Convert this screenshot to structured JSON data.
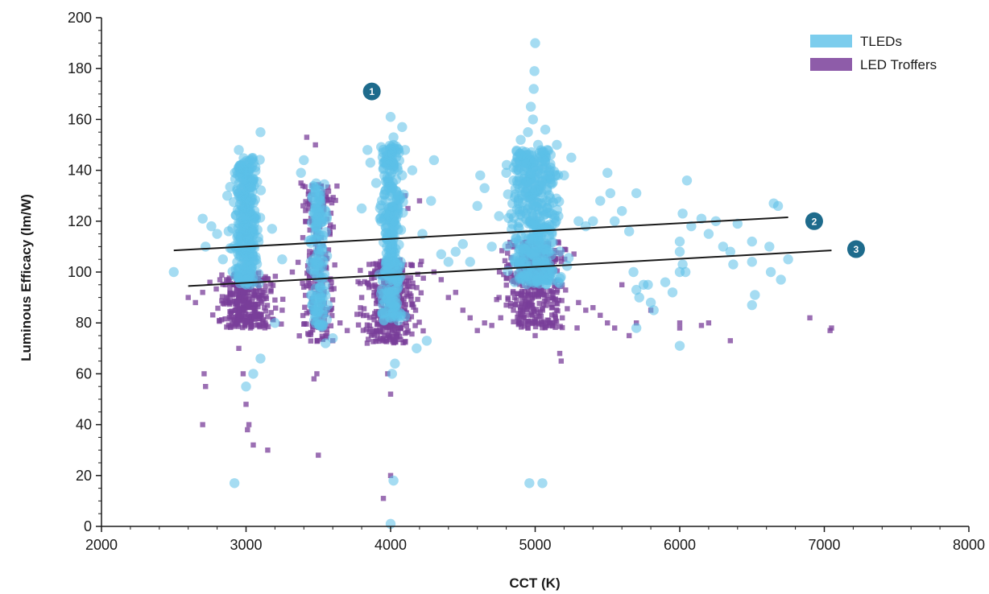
{
  "chart_data": {
    "type": "scatter",
    "xlabel": "CCT (K)",
    "ylabel": "Luminous Efficacy (lm/W)",
    "xlim": [
      2000,
      8000
    ],
    "ylim": [
      0,
      200
    ],
    "x_ticks": [
      2000,
      3000,
      4000,
      5000,
      6000,
      7000,
      8000
    ],
    "y_ticks": [
      0,
      20,
      40,
      60,
      80,
      100,
      120,
      140,
      160,
      180,
      200
    ],
    "grid": false,
    "legend_position": "top-right",
    "series": [
      {
        "name": "TLEDs",
        "marker": "circle",
        "color": "#5bc0e8",
        "clusters": [
          {
            "x_center": 3000,
            "x_spread": 90,
            "y_min": 95,
            "y_max": 145,
            "count": 320
          },
          {
            "x_center": 3500,
            "x_spread": 60,
            "y_min": 78,
            "y_max": 135,
            "count": 140
          },
          {
            "x_center": 4000,
            "x_spread": 80,
            "y_min": 80,
            "y_max": 150,
            "count": 300
          },
          {
            "x_center": 5000,
            "x_spread": 170,
            "y_min": 95,
            "y_max": 148,
            "count": 420
          }
        ],
        "points": [
          [
            2500,
            100
          ],
          [
            2700,
            121
          ],
          [
            2720,
            110
          ],
          [
            2760,
            118
          ],
          [
            2800,
            115
          ],
          [
            2840,
            105
          ],
          [
            2870,
            130
          ],
          [
            2950,
            148
          ],
          [
            3100,
            155
          ],
          [
            3180,
            117
          ],
          [
            3250,
            105
          ],
          [
            3200,
            80
          ],
          [
            3050,
            60
          ],
          [
            3100,
            66
          ],
          [
            3000,
            55
          ],
          [
            2920,
            17
          ],
          [
            3400,
            144
          ],
          [
            3380,
            139
          ],
          [
            3450,
            101
          ],
          [
            3550,
            72
          ],
          [
            3600,
            74
          ],
          [
            3800,
            125
          ],
          [
            3840,
            148
          ],
          [
            3860,
            143
          ],
          [
            3900,
            135
          ],
          [
            3950,
            143
          ],
          [
            4000,
            161
          ],
          [
            4020,
            153
          ],
          [
            4080,
            157
          ],
          [
            4100,
            148
          ],
          [
            4150,
            140
          ],
          [
            4300,
            144
          ],
          [
            4280,
            128
          ],
          [
            4220,
            115
          ],
          [
            4250,
            73
          ],
          [
            4180,
            70
          ],
          [
            4030,
            64
          ],
          [
            4010,
            60
          ],
          [
            4020,
            18
          ],
          [
            4000,
            1
          ],
          [
            4350,
            107
          ],
          [
            4400,
            104
          ],
          [
            4450,
            108
          ],
          [
            4500,
            111
          ],
          [
            4550,
            104
          ],
          [
            4600,
            126
          ],
          [
            4620,
            138
          ],
          [
            4650,
            133
          ],
          [
            4700,
            110
          ],
          [
            4750,
            122
          ],
          [
            4800,
            139
          ],
          [
            4850,
            136
          ],
          [
            4900,
            152
          ],
          [
            4950,
            155
          ],
          [
            4970,
            165
          ],
          [
            4990,
            172
          ],
          [
            5000,
            190
          ],
          [
            4995,
            179
          ],
          [
            4985,
            160
          ],
          [
            5020,
            150
          ],
          [
            5070,
            156
          ],
          [
            5100,
            140
          ],
          [
            5150,
            150
          ],
          [
            5200,
            138
          ],
          [
            5250,
            145
          ],
          [
            5300,
            120
          ],
          [
            5350,
            118
          ],
          [
            5400,
            120
          ],
          [
            5450,
            128
          ],
          [
            5500,
            139
          ],
          [
            5520,
            131
          ],
          [
            5550,
            120
          ],
          [
            5600,
            124
          ],
          [
            5650,
            116
          ],
          [
            5700,
            131
          ],
          [
            5680,
            100
          ],
          [
            5700,
            93
          ],
          [
            5720,
            90
          ],
          [
            5750,
            95
          ],
          [
            5780,
            95
          ],
          [
            5800,
            88
          ],
          [
            5820,
            85
          ],
          [
            5700,
            78
          ],
          [
            5900,
            96
          ],
          [
            5950,
            92
          ],
          [
            6000,
            112
          ],
          [
            6020,
            123
          ],
          [
            6050,
            136
          ],
          [
            6080,
            118
          ],
          [
            6000,
            108
          ],
          [
            6020,
            103
          ],
          [
            6040,
            100
          ],
          [
            6000,
            100
          ],
          [
            6000,
            71
          ],
          [
            6150,
            121
          ],
          [
            6200,
            115
          ],
          [
            6250,
            120
          ],
          [
            6300,
            110
          ],
          [
            6350,
            108
          ],
          [
            6370,
            103
          ],
          [
            6400,
            119
          ],
          [
            6500,
            112
          ],
          [
            6500,
            104
          ],
          [
            6520,
            91
          ],
          [
            6500,
            87
          ],
          [
            6650,
            127
          ],
          [
            6680,
            126
          ],
          [
            6630,
            100
          ],
          [
            6700,
            97
          ],
          [
            6750,
            105
          ],
          [
            6620,
            110
          ],
          [
            4960,
            17
          ],
          [
            5050,
            17
          ]
        ]
      },
      {
        "name": "LED Troffers",
        "marker": "square",
        "color": "#7a3f9a",
        "clusters": [
          {
            "x_center": 3000,
            "x_spread": 180,
            "y_min": 78,
            "y_max": 100,
            "count": 360
          },
          {
            "x_center": 3500,
            "x_spread": 120,
            "y_min": 72,
            "y_max": 135,
            "count": 220
          },
          {
            "x_center": 4000,
            "x_spread": 200,
            "y_min": 72,
            "y_max": 105,
            "count": 380
          },
          {
            "x_center": 5000,
            "x_spread": 220,
            "y_min": 78,
            "y_max": 112,
            "count": 420
          }
        ],
        "points": [
          [
            2600,
            90
          ],
          [
            2650,
            88
          ],
          [
            2700,
            92
          ],
          [
            2710,
            60
          ],
          [
            2720,
            55
          ],
          [
            2700,
            40
          ],
          [
            2750,
            96
          ],
          [
            2950,
            70
          ],
          [
            2980,
            60
          ],
          [
            3000,
            48
          ],
          [
            3020,
            40
          ],
          [
            3010,
            38
          ],
          [
            3050,
            32
          ],
          [
            3150,
            30
          ],
          [
            3200,
            89
          ],
          [
            3250,
            85
          ],
          [
            3320,
            100
          ],
          [
            3380,
            135
          ],
          [
            3420,
            153
          ],
          [
            3480,
            150
          ],
          [
            3470,
            58
          ],
          [
            3490,
            60
          ],
          [
            3500,
            28
          ],
          [
            3580,
            85
          ],
          [
            3600,
            73
          ],
          [
            3650,
            80
          ],
          [
            3700,
            77
          ],
          [
            3800,
            90
          ],
          [
            3850,
            95
          ],
          [
            3980,
            60
          ],
          [
            4000,
            52
          ],
          [
            4000,
            20
          ],
          [
            3950,
            11
          ],
          [
            4100,
            130
          ],
          [
            4120,
            125
          ],
          [
            4200,
            128
          ],
          [
            4300,
            100
          ],
          [
            4350,
            97
          ],
          [
            4400,
            90
          ],
          [
            4450,
            92
          ],
          [
            4500,
            85
          ],
          [
            4550,
            82
          ],
          [
            4600,
            77
          ],
          [
            4650,
            80
          ],
          [
            4700,
            79
          ],
          [
            4750,
            90
          ],
          [
            4800,
            87
          ],
          [
            4850,
            85
          ],
          [
            4900,
            80
          ],
          [
            4950,
            78
          ],
          [
            5000,
            75
          ],
          [
            5100,
            80
          ],
          [
            5170,
            68
          ],
          [
            5180,
            65
          ],
          [
            5300,
            88
          ],
          [
            5350,
            85
          ],
          [
            5400,
            86
          ],
          [
            5450,
            83
          ],
          [
            5500,
            80
          ],
          [
            5550,
            78
          ],
          [
            5600,
            95
          ],
          [
            5650,
            75
          ],
          [
            5700,
            80
          ],
          [
            5800,
            85
          ],
          [
            6000,
            80
          ],
          [
            6000,
            78
          ],
          [
            6150,
            79
          ],
          [
            6200,
            80
          ],
          [
            6350,
            73
          ],
          [
            6900,
            82
          ],
          [
            7050,
            78
          ],
          [
            7040,
            77
          ]
        ]
      }
    ],
    "trend_lines": [
      {
        "label": "2",
        "x": [
          2500,
          6750
        ],
        "y": [
          108.5,
          121.5
        ]
      },
      {
        "label": "3",
        "x": [
          2600,
          7050
        ],
        "y": [
          94.5,
          108.5
        ]
      }
    ],
    "annotations": [
      {
        "label": "1",
        "x": 3870,
        "y": 171
      },
      {
        "label": "2",
        "x": 6930,
        "y": 120
      },
      {
        "label": "3",
        "x": 7220,
        "y": 109
      }
    ],
    "annotation_color": "#1e6b8c",
    "trend_line_color": "#1a1a1a"
  }
}
